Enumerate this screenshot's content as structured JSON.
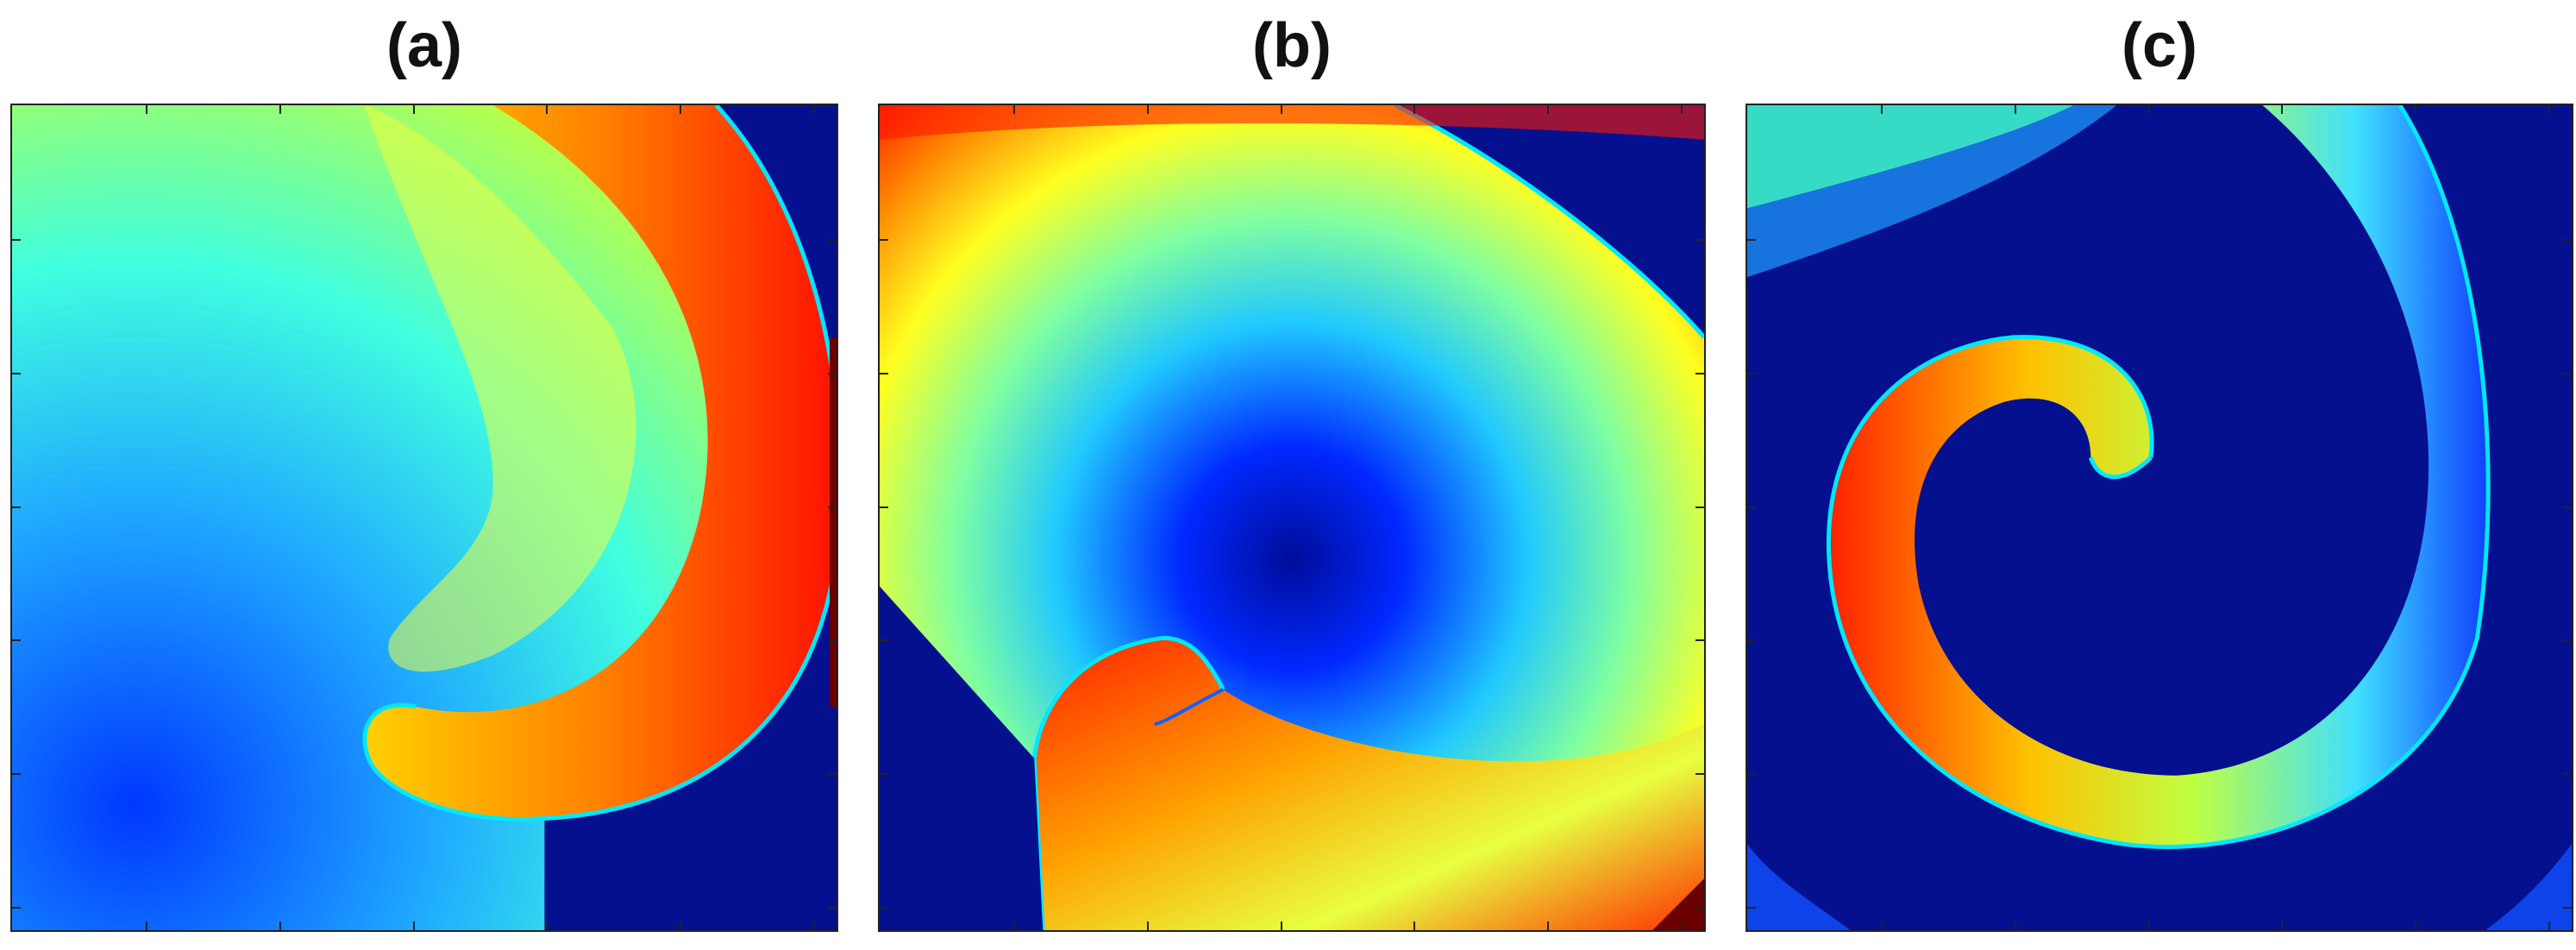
{
  "panels": [
    {
      "label": "(a)",
      "colormap": "jet"
    },
    {
      "label": "(b)",
      "colormap": "jet"
    },
    {
      "label": "(c)",
      "colormap": "jet"
    }
  ],
  "colors": {
    "dark-blue": "#00008f",
    "blue": "#0040ff",
    "cyan": "#00ffff",
    "yellow": "#ffff00",
    "red": "#ff0000",
    "dark-red": "#800000"
  }
}
